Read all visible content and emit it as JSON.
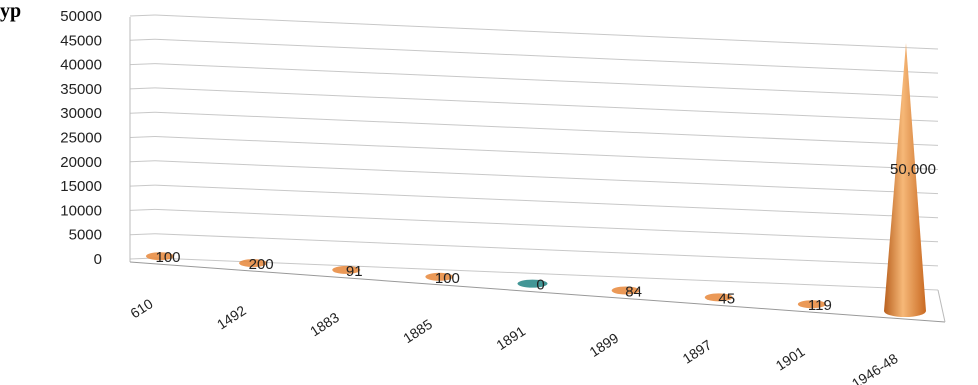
{
  "title_fragment": "ур",
  "chart_data": {
    "type": "bar",
    "shape": "cone-3d",
    "categories": [
      "610",
      "1492",
      "1883",
      "1885",
      "1891",
      "1899",
      "1897",
      "1901",
      "1946-48"
    ],
    "values": [
      100,
      200,
      91,
      100,
      0,
      84,
      45,
      119,
      50000
    ],
    "data_labels": [
      "100",
      "200",
      "91",
      "100",
      "0",
      "84",
      "45",
      "119",
      "50,000"
    ],
    "y_ticks": [
      "0",
      "5000",
      "10000",
      "15000",
      "20000",
      "25000",
      "30000",
      "35000",
      "40000",
      "45000",
      "50000"
    ],
    "ylim": [
      0,
      50000
    ],
    "grid": true,
    "legend": "none",
    "colors": {
      "bar": "#e8873a",
      "bar_light": "#f6b878",
      "bar_dark": "#b9601e",
      "zero_bar": "#2e8b8b",
      "grid": "#c8c8c8"
    }
  }
}
